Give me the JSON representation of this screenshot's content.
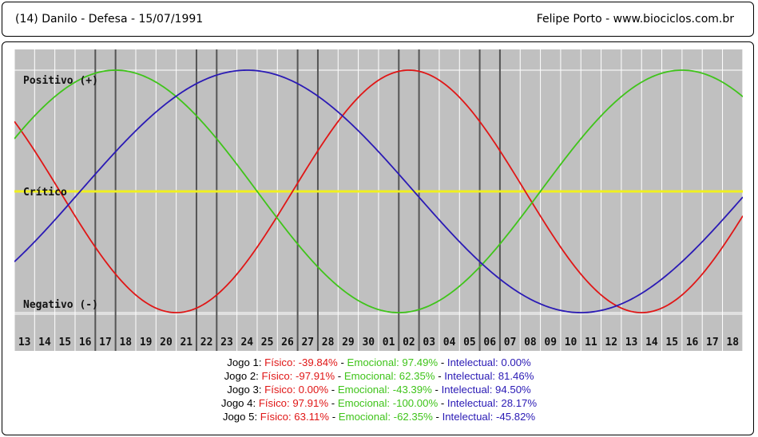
{
  "header": {
    "left": "(14)  Danilo - Defesa -  15/07/1991",
    "right": "Felipe Porto   -   www.biociclos.com.br"
  },
  "chart_data": {
    "type": "line",
    "ylabels": {
      "positive": "Positivo (+)",
      "critical": "Crítico",
      "negative": "Negativo (-)"
    },
    "x_ticks": [
      "13",
      "14",
      "15",
      "16",
      "17",
      "18",
      "19",
      "20",
      "21",
      "22",
      "23",
      "24",
      "25",
      "26",
      "27",
      "28",
      "29",
      "30",
      "01",
      "02",
      "03",
      "04",
      "05",
      "06",
      "07",
      "08",
      "09",
      "10",
      "11",
      "12",
      "13",
      "14",
      "15",
      "16",
      "17",
      "18"
    ],
    "highlighted_days": [
      4,
      9,
      14,
      19,
      23
    ],
    "series": [
      {
        "key": "fisico",
        "period": 23,
        "peak_day": 19.5,
        "color": "#e01616"
      },
      {
        "key": "emocional",
        "period": 28,
        "peak_day": 5,
        "color": "#3fc41a"
      },
      {
        "key": "intelectual",
        "period": 33,
        "peak_day": 11.5,
        "color": "#2a1ab5"
      }
    ],
    "colors": {
      "background": "#c0c0c0",
      "grid": "#ffffff",
      "critical_line": "#f0f020",
      "highlight": "#555555"
    }
  },
  "results": [
    {
      "label": "Jogo 1:",
      "fisico": "Físico: -39.84%",
      "emocional": "Emocional: 97.49%",
      "intelectual": "Intelectual: 0.00%"
    },
    {
      "label": "Jogo 2:",
      "fisico": "Físico: -97.91%",
      "emocional": "Emocional: 62.35%",
      "intelectual": "Intelectual: 81.46%"
    },
    {
      "label": "Jogo 3:",
      "fisico": "Físico: 0.00%",
      "emocional": "Emocional: -43.39%",
      "intelectual": "Intelectual: 94.50%"
    },
    {
      "label": "Jogo 4:",
      "fisico": "Físico: 97.91%",
      "emocional": "Emocional: -100.00%",
      "intelectual": "Intelectual: 28.17%"
    },
    {
      "label": "Jogo 5:",
      "fisico": "Físico: 63.11%",
      "emocional": "Emocional: -62.35%",
      "intelectual": "Intelectual: -45.82%"
    }
  ]
}
